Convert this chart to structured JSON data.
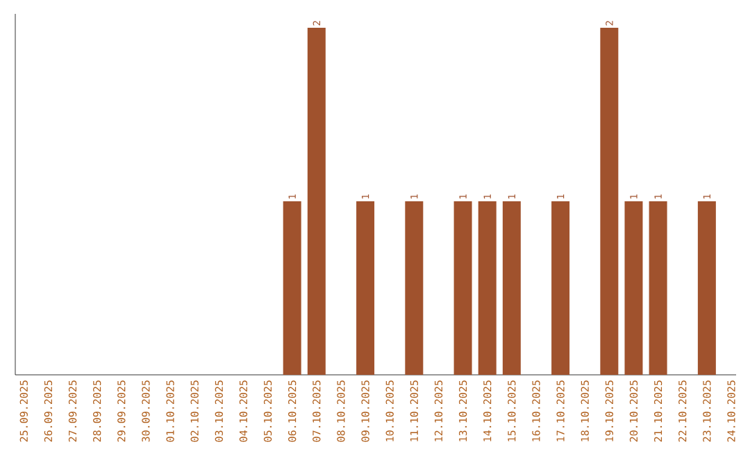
{
  "chart_data": {
    "type": "bar",
    "categories": [
      "25.09.2025",
      "26.09.2025",
      "27.09.2025",
      "28.09.2025",
      "29.09.2025",
      "30.09.2025",
      "01.10.2025",
      "02.10.2025",
      "03.10.2025",
      "04.10.2025",
      "05.10.2025",
      "06.10.2025",
      "07.10.2025",
      "08.10.2025",
      "09.10.2025",
      "10.10.2025",
      "11.10.2025",
      "12.10.2025",
      "13.10.2025",
      "14.10.2025",
      "15.10.2025",
      "16.10.2025",
      "17.10.2025",
      "18.10.2025",
      "19.10.2025",
      "20.10.2025",
      "21.10.2025",
      "22.10.2025",
      "23.10.2025",
      "24.10.2025"
    ],
    "values": [
      0,
      0,
      0,
      0,
      0,
      0,
      0,
      0,
      0,
      0,
      0,
      1,
      2,
      0,
      1,
      0,
      1,
      0,
      1,
      1,
      1,
      0,
      1,
      0,
      2,
      1,
      1,
      0,
      1,
      0
    ],
    "value_labels": [
      null,
      null,
      null,
      null,
      null,
      null,
      null,
      null,
      null,
      null,
      null,
      "1",
      "2",
      null,
      "1",
      null,
      "1",
      null,
      "1",
      "1",
      "1",
      null,
      "1",
      null,
      "2",
      "1",
      "1",
      null,
      "1",
      null
    ],
    "color": "#a0522d"
  }
}
